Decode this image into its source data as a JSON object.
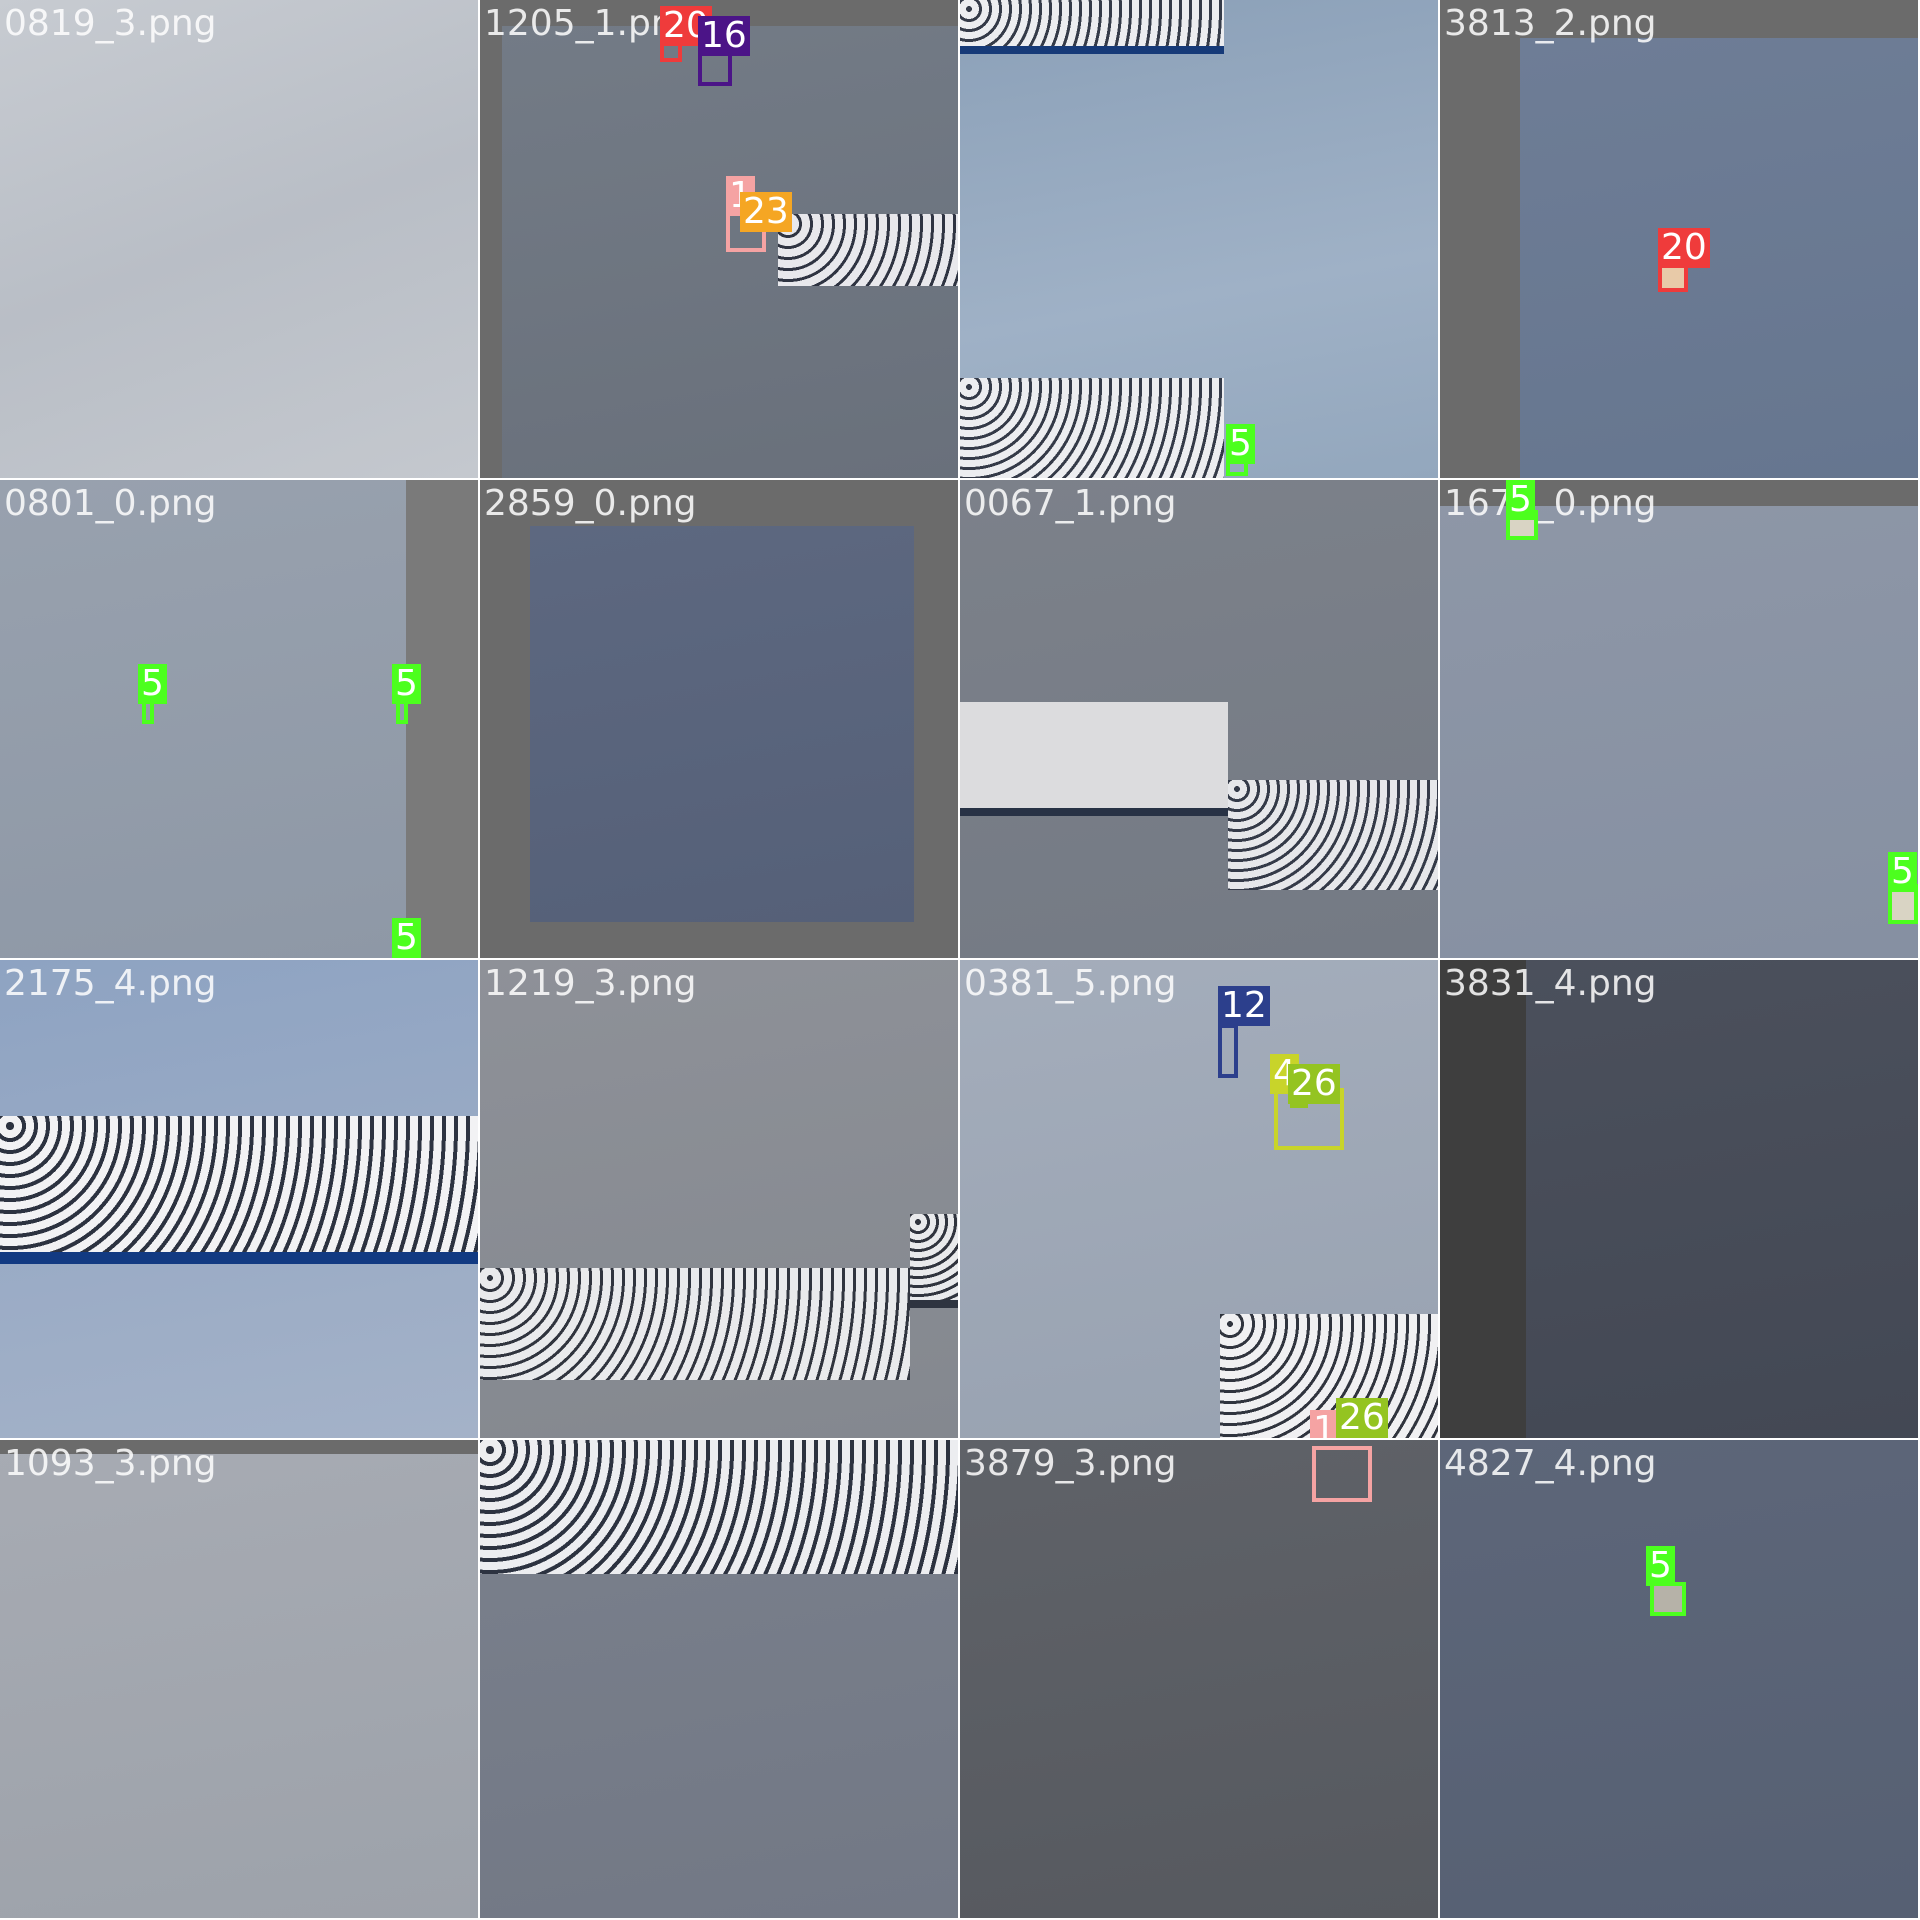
{
  "tiles": [
    {
      "file": "0819_3.png",
      "labels": []
    },
    {
      "file": "1205_1.png",
      "labels": [
        "20",
        "16",
        "1",
        "23"
      ]
    },
    {
      "file": "",
      "labels": [
        "5"
      ]
    },
    {
      "file": "3813_2.png",
      "labels": [
        "20"
      ]
    },
    {
      "file": "0801_0.png",
      "labels": [
        "5",
        "5",
        "5"
      ]
    },
    {
      "file": "2859_0.png",
      "labels": []
    },
    {
      "file": "0067_1.png",
      "labels": []
    },
    {
      "file": "1675_0.png",
      "labels": [
        "5",
        "5"
      ]
    },
    {
      "file": "2175_4.png",
      "labels": []
    },
    {
      "file": "1219_3.png",
      "labels": []
    },
    {
      "file": "0381_5.png",
      "labels": [
        "12",
        "4",
        "26",
        "1",
        "26"
      ]
    },
    {
      "file": "3831_4.png",
      "labels": []
    },
    {
      "file": "1093_3.png",
      "labels": []
    },
    {
      "file": "",
      "labels": []
    },
    {
      "file": "3879_3.png",
      "labels": []
    },
    {
      "file": "4827_4.png",
      "labels": [
        "5"
      ]
    }
  ],
  "colors": {
    "class_5": "#4cff1e",
    "class_20": "#ef3b3b",
    "class_16": "#4b1487",
    "class_1": "#f5a3a3",
    "class_23": "#f5a623",
    "class_12": "#2c3f8c",
    "class_4": "#c8d42a",
    "class_26": "#94c421"
  }
}
